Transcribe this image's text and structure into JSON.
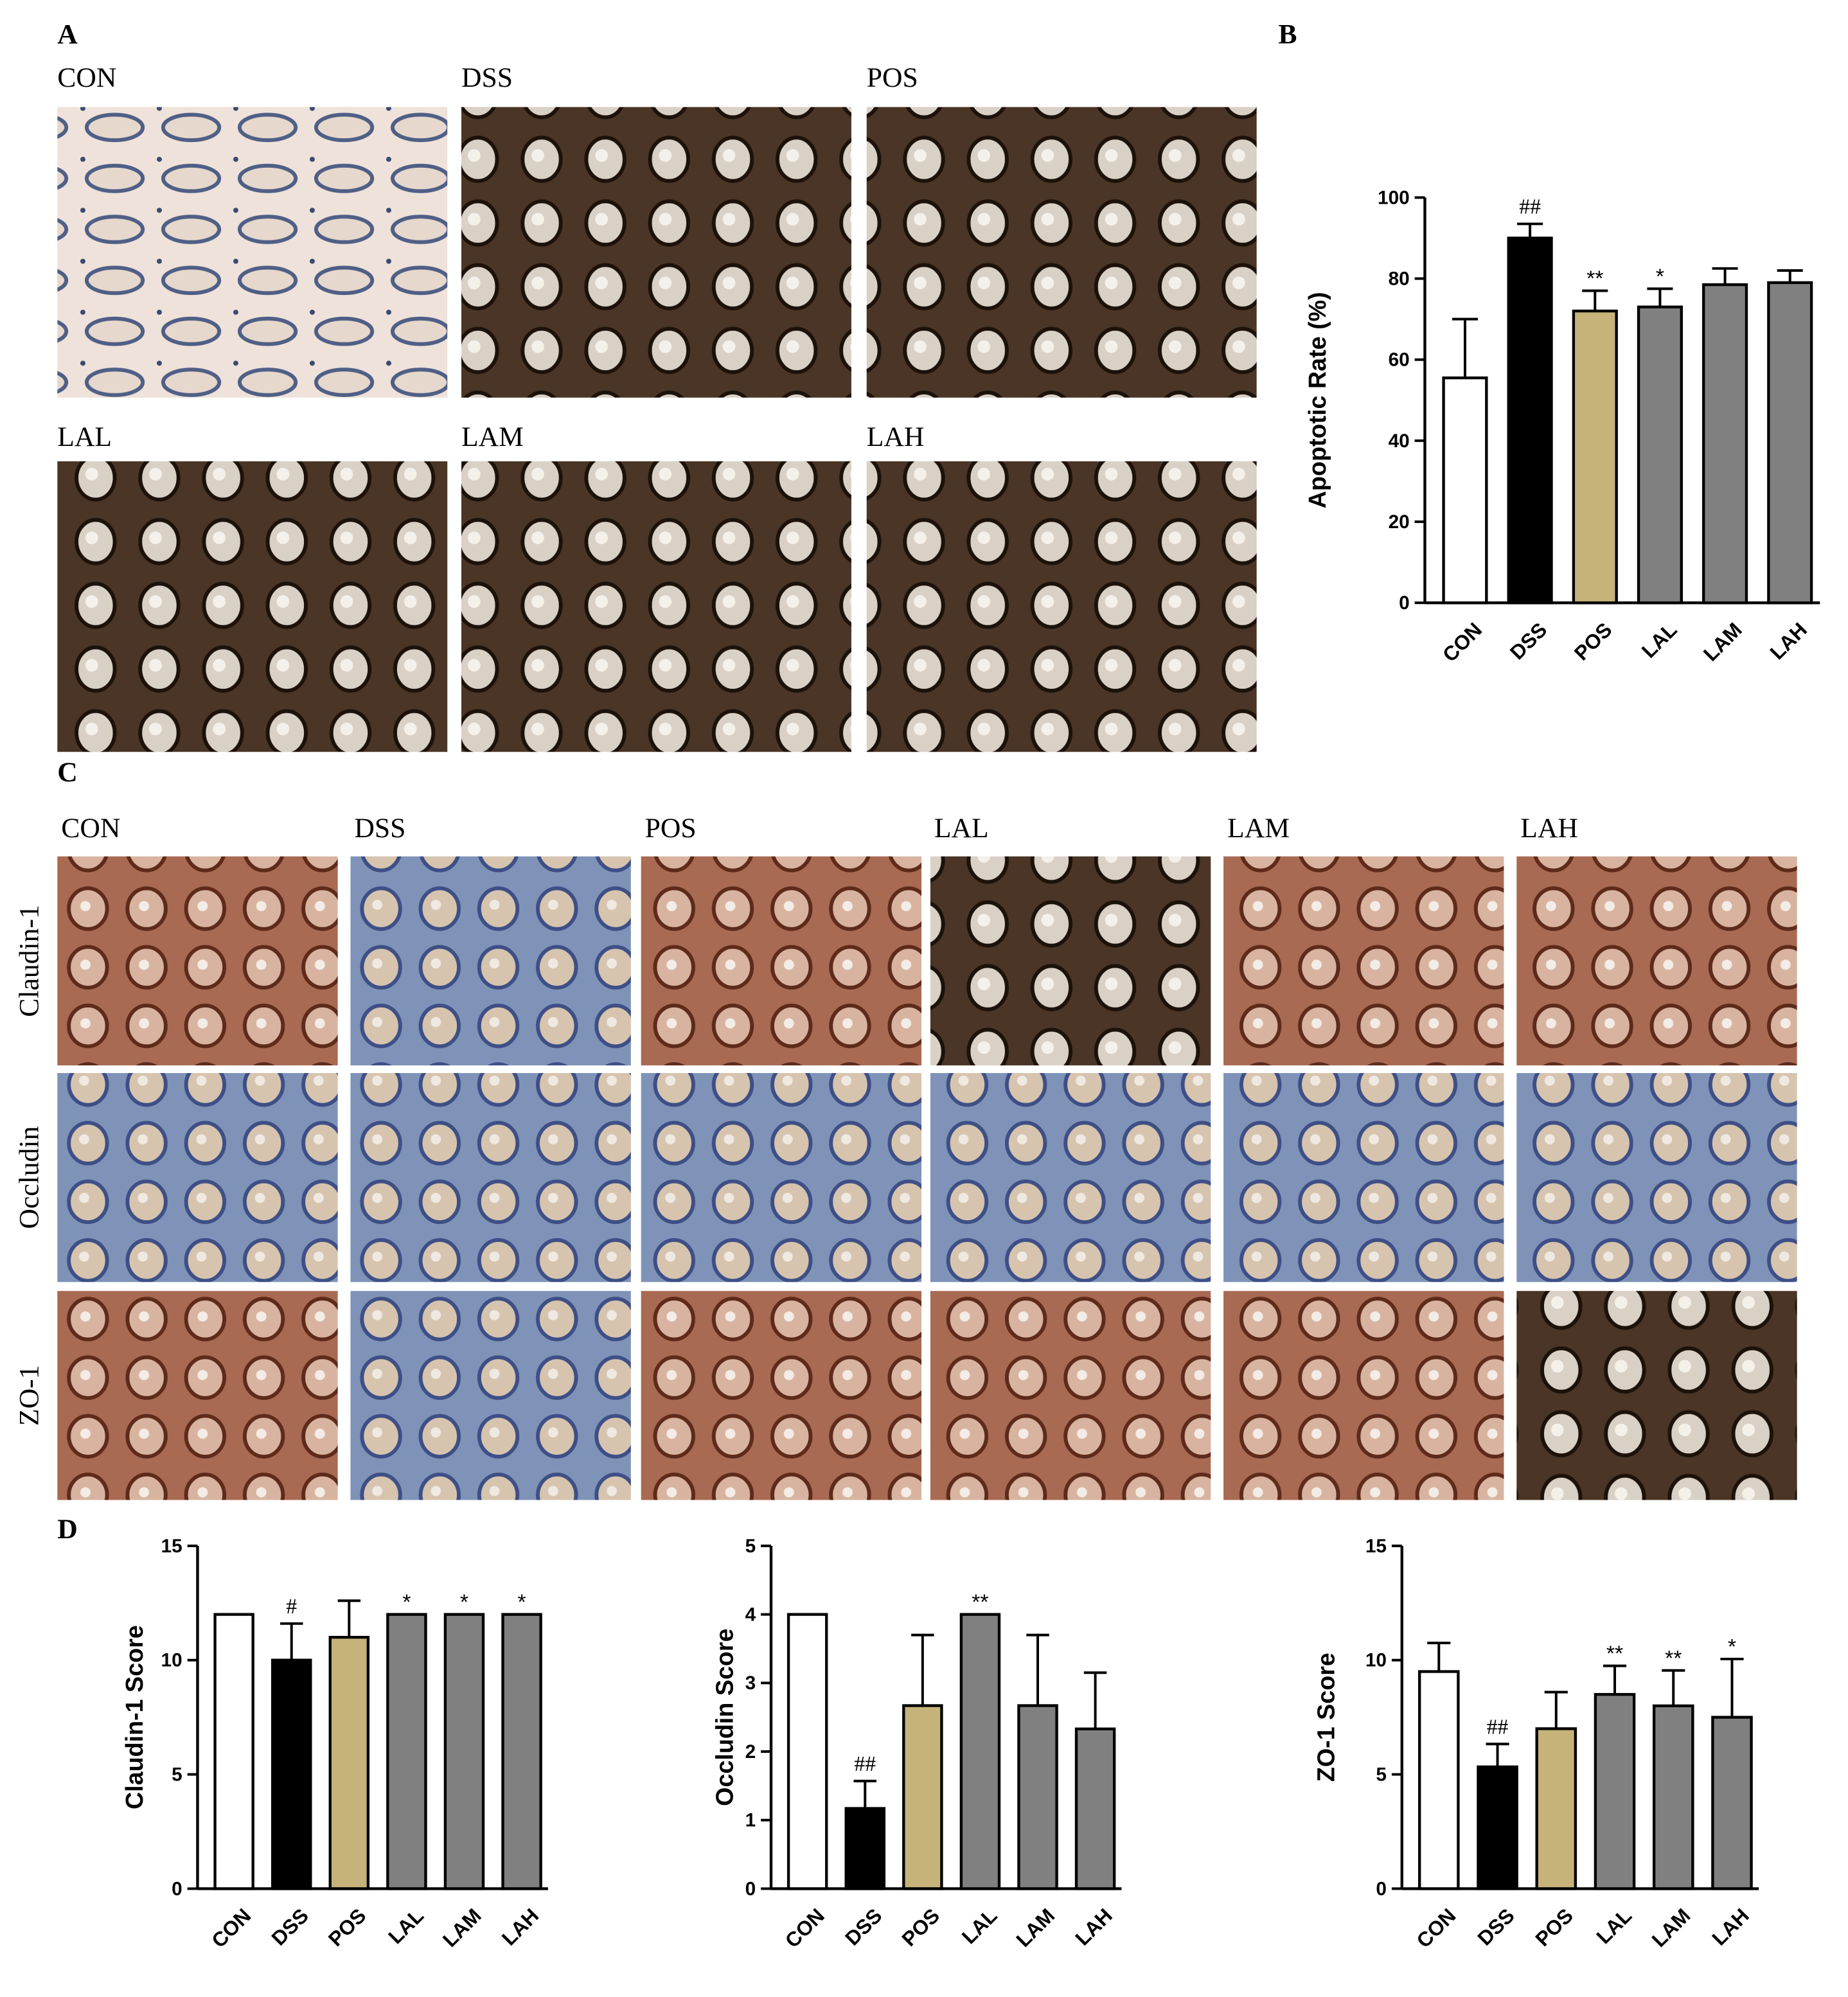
{
  "panel_labels": [
    "A",
    "B",
    "C",
    "D"
  ],
  "micrographs_a": {
    "labels": [
      "CON",
      "DSS",
      "POS",
      "LAL",
      "LAM",
      "LAH"
    ]
  },
  "micrographs_c": {
    "columns": [
      "CON",
      "DSS",
      "POS",
      "LAL",
      "LAM",
      "LAH"
    ],
    "rows": [
      "Claudin-1",
      "Occludin",
      "ZO-1"
    ]
  },
  "chart_data": [
    {
      "type": "bar",
      "ylabel": "Apoptotic Rate (%)",
      "categories": [
        "CON",
        "DSS",
        "POS",
        "LAL",
        "LAM",
        "LAH"
      ],
      "values": [
        55.5,
        90,
        72,
        73,
        78.5,
        79
      ],
      "errors": [
        14.5,
        3.5,
        5,
        4.5,
        4,
        3
      ],
      "colors": [
        "#ffffff",
        "#000000",
        "#c6b37a",
        "#808080",
        "#808080",
        "#808080"
      ],
      "annotations": [
        null,
        "##",
        "**",
        "*",
        null,
        null
      ],
      "ylim": [
        0,
        100
      ],
      "yticks": [
        0,
        20,
        40,
        60,
        80,
        100
      ]
    },
    {
      "type": "bar",
      "ylabel": "Claudin-1 Score",
      "categories": [
        "CON",
        "DSS",
        "POS",
        "LAL",
        "LAM",
        "LAH"
      ],
      "values": [
        12,
        10,
        11,
        12,
        12,
        12
      ],
      "errors": [
        0,
        1.6,
        1.6,
        0,
        0,
        0
      ],
      "colors": [
        "#ffffff",
        "#000000",
        "#c6b37a",
        "#808080",
        "#808080",
        "#808080"
      ],
      "annotations": [
        null,
        "#",
        null,
        "*",
        "*",
        "*"
      ],
      "ylim": [
        0,
        15
      ],
      "yticks": [
        0,
        5,
        10,
        15
      ]
    },
    {
      "type": "bar",
      "ylabel": "Occludin Score",
      "categories": [
        "CON",
        "DSS",
        "POS",
        "LAL",
        "LAM",
        "LAH"
      ],
      "values": [
        4,
        1.17,
        2.67,
        4,
        2.67,
        2.33
      ],
      "errors": [
        0,
        0.4,
        1.03,
        0,
        1.03,
        0.82
      ],
      "colors": [
        "#ffffff",
        "#000000",
        "#c6b37a",
        "#808080",
        "#808080",
        "#808080"
      ],
      "annotations": [
        null,
        "##",
        null,
        "**",
        null,
        null
      ],
      "ylim": [
        0,
        5
      ],
      "yticks": [
        0,
        1,
        2,
        3,
        4,
        5
      ]
    },
    {
      "type": "bar",
      "ylabel": "ZO-1 Score",
      "categories": [
        "CON",
        "DSS",
        "POS",
        "LAL",
        "LAM",
        "LAH"
      ],
      "values": [
        9.5,
        5.33,
        7,
        8.5,
        8,
        7.5
      ],
      "errors": [
        1.25,
        1,
        1.6,
        1.25,
        1.55,
        2.55
      ],
      "colors": [
        "#ffffff",
        "#000000",
        "#c6b37a",
        "#808080",
        "#808080",
        "#808080"
      ],
      "annotations": [
        null,
        "##",
        null,
        "**",
        "**",
        "*"
      ],
      "ylim": [
        0,
        15
      ],
      "yticks": [
        0,
        5,
        10,
        15
      ]
    }
  ]
}
